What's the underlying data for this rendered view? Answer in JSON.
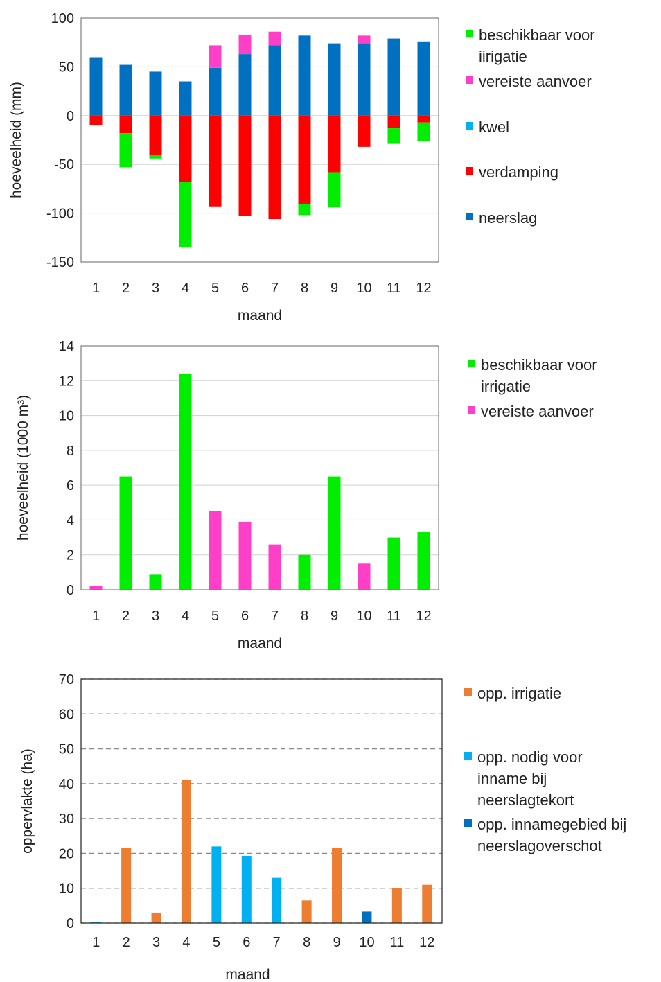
{
  "chart_data": [
    {
      "type": "bar",
      "stacked": true,
      "categories": [
        "1",
        "2",
        "3",
        "4",
        "5",
        "6",
        "7",
        "8",
        "9",
        "10",
        "11",
        "12"
      ],
      "xlabel": "maand",
      "ylabel": "hoeveelheid (mm)",
      "ylim": [
        -150,
        100
      ],
      "yticks": [
        -150,
        -100,
        -50,
        0,
        50,
        100
      ],
      "grid": true,
      "legend_position": "right",
      "series": [
        {
          "name": "neerslag",
          "color": "#0070c0",
          "values": [
            59,
            52,
            45,
            35,
            49,
            63,
            72,
            82,
            74,
            74,
            79,
            76
          ]
        },
        {
          "name": "vereiste aanvoer",
          "color": "#ff3fc8",
          "values": [
            1,
            0,
            0,
            0,
            23,
            20,
            14,
            0,
            0,
            8,
            0,
            0
          ]
        },
        {
          "name": "verdamping",
          "color": "#ff0000",
          "values": [
            -10,
            -18,
            -40,
            -68,
            -93,
            -103,
            -106,
            -91,
            -58,
            -32,
            -13,
            -7
          ]
        },
        {
          "name": "beschikbaar voor irrigatie",
          "color": "#00ee00",
          "values": [
            0,
            -35,
            -4,
            -67,
            0,
            0,
            0,
            -11,
            -36,
            0,
            -16,
            -19
          ]
        },
        {
          "name": "kwel",
          "color": "#00b0f0",
          "values": [
            0,
            0,
            0,
            0,
            0,
            0,
            0,
            0,
            0,
            0,
            0,
            0
          ]
        }
      ],
      "legend": [
        {
          "label_lines": [
            "beschikbaar voor",
            "iirigatie"
          ],
          "color": "#00ee00"
        },
        {
          "label_lines": [
            "vereiste aanvoer"
          ],
          "color": "#ff3fc8"
        },
        {
          "label_lines": [
            "kwel"
          ],
          "color": "#00b0f0"
        },
        {
          "label_lines": [
            "verdamping"
          ],
          "color": "#ff0000"
        },
        {
          "label_lines": [
            "neerslag"
          ],
          "color": "#0070c0"
        }
      ]
    },
    {
      "type": "bar",
      "stacked": true,
      "categories": [
        "1",
        "2",
        "3",
        "4",
        "5",
        "6",
        "7",
        "8",
        "9",
        "10",
        "11",
        "12"
      ],
      "xlabel": "maand",
      "ylabel": "hoeveelheid (1000 m³)",
      "ylim": [
        0,
        14
      ],
      "yticks": [
        0,
        2,
        4,
        6,
        8,
        10,
        12,
        14
      ],
      "grid": true,
      "legend_position": "right",
      "series": [
        {
          "name": "beschikbaar voor irrigatie",
          "color": "#00ee00",
          "values": [
            0,
            6.5,
            0.9,
            12.4,
            0,
            0,
            0,
            2.0,
            6.5,
            0,
            3.0,
            3.3
          ]
        },
        {
          "name": "vereiste aanvoer",
          "color": "#ff3fc8",
          "values": [
            0.2,
            0,
            0,
            0,
            4.5,
            3.9,
            2.6,
            0,
            0,
            1.5,
            0,
            0
          ]
        }
      ],
      "legend": [
        {
          "label_lines": [
            "beschikbaar voor",
            "irrigatie"
          ],
          "color": "#00ee00"
        },
        {
          "label_lines": [
            "vereiste aanvoer"
          ],
          "color": "#ff3fc8"
        }
      ]
    },
    {
      "type": "bar",
      "stacked": true,
      "categories": [
        "1",
        "2",
        "3",
        "4",
        "5",
        "6",
        "7",
        "8",
        "9",
        "10",
        "11",
        "12"
      ],
      "xlabel": "maand",
      "ylabel": "oppervlakte (ha)",
      "ylim": [
        0,
        70
      ],
      "yticks": [
        0,
        10,
        20,
        30,
        40,
        50,
        60,
        70
      ],
      "grid": true,
      "grid_style": "dashed",
      "legend_position": "right",
      "series": [
        {
          "name": "opp. irrigatie",
          "color": "#ed7d31",
          "values": [
            0,
            21.5,
            3,
            41,
            0,
            0,
            0,
            6.5,
            21.5,
            0,
            10,
            11
          ]
        },
        {
          "name": "opp. nodig voor inname bij neerslagtekort",
          "color": "#00b0f0",
          "values": [
            0.3,
            0,
            0,
            0,
            22,
            19.3,
            13,
            0,
            0,
            0,
            0,
            0
          ]
        },
        {
          "name": "opp. innamegebied bij neerslagoverschot",
          "color": "#0070c0",
          "values": [
            0,
            0,
            0,
            0,
            0,
            0,
            0,
            0,
            0,
            3.3,
            0,
            0
          ]
        }
      ],
      "legend": [
        {
          "label_lines": [
            "opp. irrigatie"
          ],
          "color": "#ed7d31"
        },
        {
          "label_lines": [
            "opp. nodig voor",
            "inname bij",
            "neerslagtekort"
          ],
          "color": "#00b0f0"
        },
        {
          "label_lines": [
            "opp. innamegebied bij",
            "neerslagoverschot"
          ],
          "color": "#0070c0"
        }
      ]
    }
  ]
}
